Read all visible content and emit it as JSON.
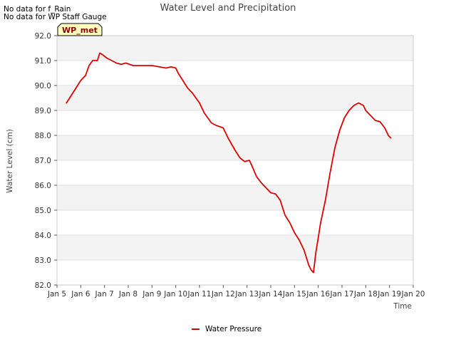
{
  "notes": [
    "No data for f_Rain",
    "No data for WP Staff Gauge"
  ],
  "chart_data": {
    "type": "line",
    "title": "Water Level and Precipitation",
    "xlabel": "Time",
    "ylabel": "Water Level (cm)",
    "badge": "WP_met",
    "xlim": [
      5,
      20
    ],
    "ylim": [
      82.0,
      92.0
    ],
    "x_ticks": [
      5,
      6,
      7,
      8,
      9,
      10,
      11,
      12,
      13,
      14,
      15,
      16,
      17,
      18,
      19,
      20
    ],
    "x_tick_labels": [
      "Jan 5",
      "Jan 6",
      "Jan 7",
      "Jan 8",
      "Jan 9",
      "Jan 10",
      "Jan 11",
      "Jan 12",
      "Jan 13",
      "Jan 14",
      "Jan 15",
      "Jan 16",
      "Jan 17",
      "Jan 18",
      "Jan 19",
      "Jan 20"
    ],
    "y_ticks": [
      82.0,
      83.0,
      84.0,
      85.0,
      86.0,
      87.0,
      88.0,
      89.0,
      90.0,
      91.0,
      92.0
    ],
    "y_tick_labels": [
      "82.0",
      "83.0",
      "84.0",
      "85.0",
      "86.0",
      "87.0",
      "88.0",
      "89.0",
      "90.0",
      "91.0",
      "92.0"
    ],
    "legend_position": "bottom-center",
    "background_bands": true,
    "series": [
      {
        "name": "Water Pressure",
        "color": "#dd0000",
        "x": [
          5.4,
          5.6,
          5.8,
          6.0,
          6.2,
          6.35,
          6.5,
          6.7,
          6.8,
          6.9,
          7.1,
          7.3,
          7.5,
          7.7,
          7.9,
          8.2,
          8.5,
          8.8,
          9.0,
          9.3,
          9.6,
          9.8,
          10.0,
          10.1,
          10.3,
          10.5,
          10.7,
          11.0,
          11.2,
          11.5,
          11.7,
          12.0,
          12.2,
          12.5,
          12.7,
          12.9,
          13.1,
          13.2,
          13.4,
          13.6,
          13.8,
          14.0,
          14.2,
          14.4,
          14.6,
          14.8,
          15.0,
          15.2,
          15.4,
          15.6,
          15.7,
          15.8,
          15.9,
          16.0,
          16.1,
          16.3,
          16.5,
          16.7,
          16.9,
          17.1,
          17.3,
          17.5,
          17.7,
          17.9,
          18.0,
          18.2,
          18.4,
          18.6,
          18.8,
          18.95,
          19.05
        ],
        "values": [
          89.3,
          89.6,
          89.9,
          90.2,
          90.4,
          90.8,
          91.0,
          91.0,
          91.3,
          91.25,
          91.1,
          91.0,
          90.9,
          90.85,
          90.9,
          90.8,
          90.8,
          90.8,
          90.8,
          90.75,
          90.7,
          90.75,
          90.7,
          90.5,
          90.2,
          89.9,
          89.7,
          89.3,
          88.9,
          88.5,
          88.4,
          88.3,
          87.9,
          87.4,
          87.1,
          86.95,
          87.0,
          86.8,
          86.35,
          86.1,
          85.9,
          85.7,
          85.65,
          85.4,
          84.8,
          84.5,
          84.1,
          83.8,
          83.4,
          82.8,
          82.6,
          82.5,
          83.3,
          83.9,
          84.5,
          85.4,
          86.5,
          87.5,
          88.2,
          88.7,
          89.0,
          89.2,
          89.3,
          89.2,
          89.0,
          88.8,
          88.6,
          88.55,
          88.3,
          88.0,
          87.9
        ]
      }
    ]
  }
}
